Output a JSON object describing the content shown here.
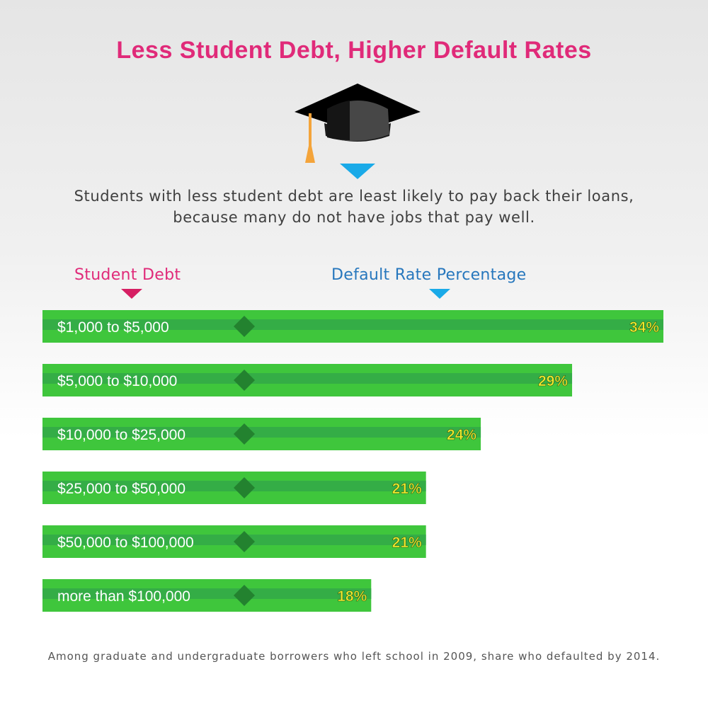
{
  "title": "Less Student Debt, Higher Default Rates",
  "subtitle_lines": [
    "Students with less student debt are least likely to pay back their loans,",
    "because many do not have jobs that pay well."
  ],
  "column_labels": {
    "debt": "Student Debt",
    "rate": "Default Rate Percentage"
  },
  "footnote": "Among graduate and undergraduate borrowers who left school in 2009, share who defaulted by 2014.",
  "icons": {
    "header": "graduation-cap-icon",
    "pointers": "triangle-down-icon",
    "row_marker": "diamond-icon"
  },
  "colors": {
    "title": "#e02a79",
    "debt_label": "#e02a79",
    "rate_label": "#2777bd",
    "subtitle_pointer": "#1aaae8",
    "bar_light": "#3fc63c",
    "bar_dark": "#34ad46",
    "diamond": "#23822f",
    "value_label": "#f3ea2e",
    "tassel": "#f4a43a"
  },
  "chart_data": {
    "type": "bar",
    "orientation": "horizontal",
    "categories": [
      "$1,000 to $5,000",
      "$5,000 to $10,000",
      "$10,000 to $25,000",
      "$25,000 to $50,000",
      "$50,000 to $100,000",
      "more than $100,000"
    ],
    "values": [
      34,
      29,
      24,
      21,
      21,
      18
    ],
    "value_labels": [
      "34%",
      "29%",
      "24%",
      "21%",
      "21%",
      "18%"
    ],
    "unit": "%",
    "xlim": [
      0,
      34
    ],
    "grid": false,
    "legend": "none"
  }
}
